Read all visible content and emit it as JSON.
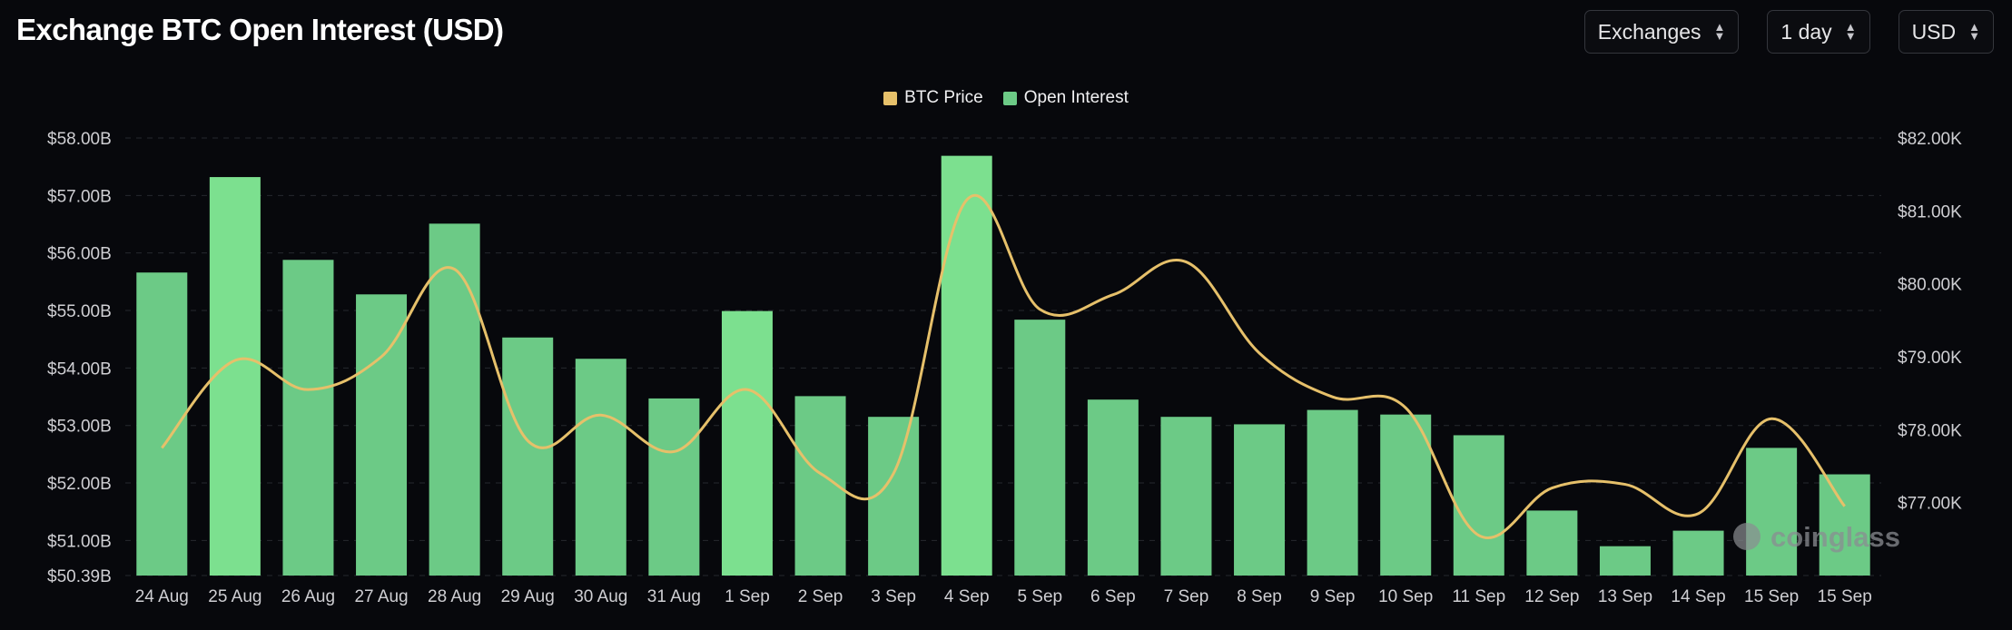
{
  "header": {
    "title": "Exchange BTC Open Interest (USD)",
    "selects": [
      {
        "label": "Exchanges",
        "icon": "chevron-up-down-icon"
      },
      {
        "label": "1 day",
        "icon": "chevron-up-down-icon"
      },
      {
        "label": "USD",
        "icon": "chevron-up-down-icon"
      }
    ]
  },
  "watermark": "coinglass",
  "colors": {
    "background": "#07080c",
    "bar": "#6cca86",
    "bar_highlight": "#7ce08f",
    "btc_line": "#e6c06a",
    "grid": "#26282e"
  },
  "chart_data": {
    "type": "bar",
    "categories": [
      "24 Aug",
      "25 Aug",
      "26 Aug",
      "27 Aug",
      "28 Aug",
      "29 Aug",
      "30 Aug",
      "31 Aug",
      "1 Sep",
      "2 Sep",
      "3 Sep",
      "4 Sep",
      "5 Sep",
      "6 Sep",
      "7 Sep",
      "8 Sep",
      "9 Sep",
      "10 Sep",
      "11 Sep",
      "12 Sep",
      "13 Sep",
      "14 Sep",
      "15 Sep",
      "15 Sep"
    ],
    "legend": [
      {
        "name": "BTC Price",
        "color": "#e6c06a"
      },
      {
        "name": "Open Interest",
        "color": "#6cca86"
      }
    ],
    "legend_position": "top-center",
    "series": [
      {
        "name": "Open Interest",
        "type": "bar",
        "axis": "left",
        "values": [
          55.66,
          57.32,
          55.88,
          55.28,
          56.51,
          54.53,
          54.16,
          53.47,
          54.99,
          53.51,
          53.15,
          57.69,
          54.84,
          53.45,
          53.15,
          53.02,
          53.27,
          53.19,
          52.83,
          51.52,
          50.9,
          51.17,
          52.61,
          52.15
        ],
        "highlight_indexes": [
          1,
          8,
          11
        ]
      },
      {
        "name": "BTC Price",
        "type": "line",
        "axis": "right",
        "values": [
          77750,
          78950,
          78550,
          79000,
          80200,
          77850,
          78200,
          77700,
          78550,
          77400,
          77400,
          81150,
          79650,
          79850,
          80300,
          79050,
          78450,
          78300,
          76550,
          77200,
          77250,
          76850,
          78150,
          76950
        ]
      }
    ],
    "y_left": {
      "ticks": [
        "$58.00B",
        "$57.00B",
        "$56.00B",
        "$55.00B",
        "$54.00B",
        "$53.00B",
        "$52.00B",
        "$51.00B",
        "$50.39B"
      ],
      "ylim": [
        50.39,
        58.0
      ]
    },
    "y_right": {
      "ticks": [
        "$82.00K",
        "$81.00K",
        "$80.00K",
        "$79.00K",
        "$78.00K",
        "$77.00K"
      ],
      "ylim": [
        76000,
        82000
      ]
    },
    "grid": true
  }
}
